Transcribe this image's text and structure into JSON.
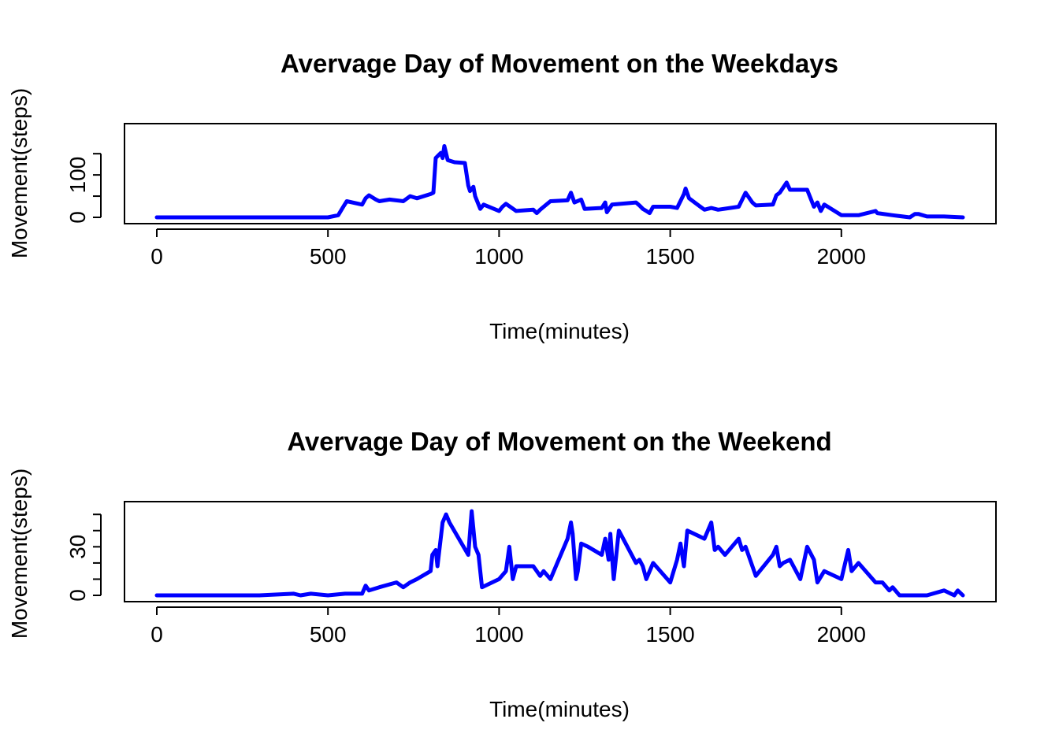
{
  "chart_data": [
    {
      "type": "line",
      "title": "Avervage Day of Movement on the Weekdays",
      "xlabel": "Time(minutes)",
      "ylabel": "Movement(steps)",
      "xlim": [
        0,
        2355
      ],
      "ylim": [
        0,
        206
      ],
      "x_ticks": [
        0,
        500,
        1000,
        1500,
        2000
      ],
      "y_ticks": [
        0,
        100
      ],
      "y_minor_ticks": [
        50,
        150
      ],
      "grid": false,
      "legend": "none",
      "color": "#0000ff",
      "series": [
        {
          "x": [
            0,
            100,
            200,
            300,
            400,
            500,
            530,
            545,
            555,
            600,
            610,
            620,
            640,
            650,
            680,
            720,
            740,
            760,
            800,
            808,
            815,
            830,
            835,
            840,
            850,
            870,
            900,
            910,
            915,
            925,
            930,
            945,
            955,
            1000,
            1010,
            1020,
            1050,
            1100,
            1110,
            1120,
            1150,
            1200,
            1210,
            1220,
            1240,
            1250,
            1300,
            1310,
            1315,
            1330,
            1400,
            1410,
            1420,
            1430,
            1440,
            1450,
            1500,
            1520,
            1540,
            1545,
            1555,
            1600,
            1620,
            1640,
            1700,
            1720,
            1740,
            1750,
            1800,
            1810,
            1820,
            1840,
            1850,
            1900,
            1920,
            1930,
            1940,
            1950,
            2000,
            2050,
            2100,
            2105,
            2150,
            2200,
            2215,
            2225,
            2250,
            2300,
            2355
          ],
          "y": [
            0,
            0,
            0,
            0,
            0,
            0,
            5,
            25,
            38,
            30,
            45,
            52,
            42,
            38,
            42,
            38,
            50,
            45,
            55,
            58,
            140,
            152,
            140,
            168,
            135,
            130,
            128,
            75,
            62,
            72,
            50,
            20,
            30,
            15,
            25,
            32,
            15,
            18,
            10,
            18,
            38,
            40,
            58,
            35,
            42,
            20,
            22,
            35,
            12,
            30,
            35,
            28,
            20,
            15,
            10,
            25,
            25,
            22,
            55,
            68,
            45,
            18,
            22,
            18,
            25,
            58,
            35,
            28,
            30,
            52,
            58,
            82,
            65,
            65,
            25,
            35,
            15,
            30,
            5,
            5,
            15,
            10,
            5,
            0,
            8,
            8,
            2,
            2,
            0
          ]
        }
      ]
    },
    {
      "type": "line",
      "title": "Avervage Day of Movement on the Weekend",
      "xlabel": "Time(minutes)",
      "ylabel": "Movement(steps)",
      "xlim": [
        0,
        2355
      ],
      "ylim": [
        0,
        54
      ],
      "x_ticks": [
        0,
        500,
        1000,
        1500,
        2000
      ],
      "y_ticks": [
        0,
        30
      ],
      "y_minor_ticks": [
        10,
        20,
        40,
        50
      ],
      "grid": false,
      "legend": "none",
      "color": "#0000ff",
      "series": [
        {
          "x": [
            0,
            100,
            200,
            300,
            400,
            420,
            450,
            500,
            550,
            600,
            610,
            620,
            650,
            700,
            720,
            740,
            760,
            800,
            805,
            815,
            820,
            835,
            845,
            855,
            910,
            920,
            930,
            940,
            950,
            1000,
            1020,
            1030,
            1040,
            1050,
            1080,
            1100,
            1110,
            1120,
            1130,
            1150,
            1200,
            1210,
            1215,
            1225,
            1230,
            1240,
            1260,
            1300,
            1310,
            1320,
            1325,
            1335,
            1350,
            1400,
            1410,
            1420,
            1430,
            1450,
            1500,
            1520,
            1530,
            1540,
            1550,
            1600,
            1620,
            1630,
            1640,
            1660,
            1700,
            1710,
            1720,
            1750,
            1800,
            1810,
            1820,
            1830,
            1850,
            1880,
            1900,
            1920,
            1930,
            1950,
            2000,
            2020,
            2030,
            2050,
            2100,
            2120,
            2140,
            2150,
            2170,
            2200,
            2250,
            2300,
            2330,
            2340,
            2355
          ],
          "y": [
            0,
            0,
            0,
            0,
            1,
            0,
            1,
            0,
            1,
            1,
            6,
            3,
            5,
            8,
            5,
            8,
            10,
            15,
            25,
            28,
            18,
            45,
            50,
            45,
            25,
            52,
            30,
            25,
            5,
            10,
            15,
            30,
            10,
            18,
            18,
            18,
            15,
            12,
            15,
            10,
            35,
            45,
            38,
            10,
            15,
            32,
            30,
            25,
            35,
            22,
            38,
            10,
            40,
            20,
            22,
            18,
            10,
            20,
            8,
            22,
            32,
            18,
            40,
            35,
            45,
            28,
            30,
            25,
            35,
            28,
            30,
            12,
            25,
            30,
            18,
            20,
            22,
            10,
            30,
            22,
            8,
            15,
            10,
            28,
            15,
            20,
            8,
            8,
            3,
            5,
            0,
            0,
            0,
            3,
            0,
            3,
            0
          ]
        }
      ]
    }
  ]
}
